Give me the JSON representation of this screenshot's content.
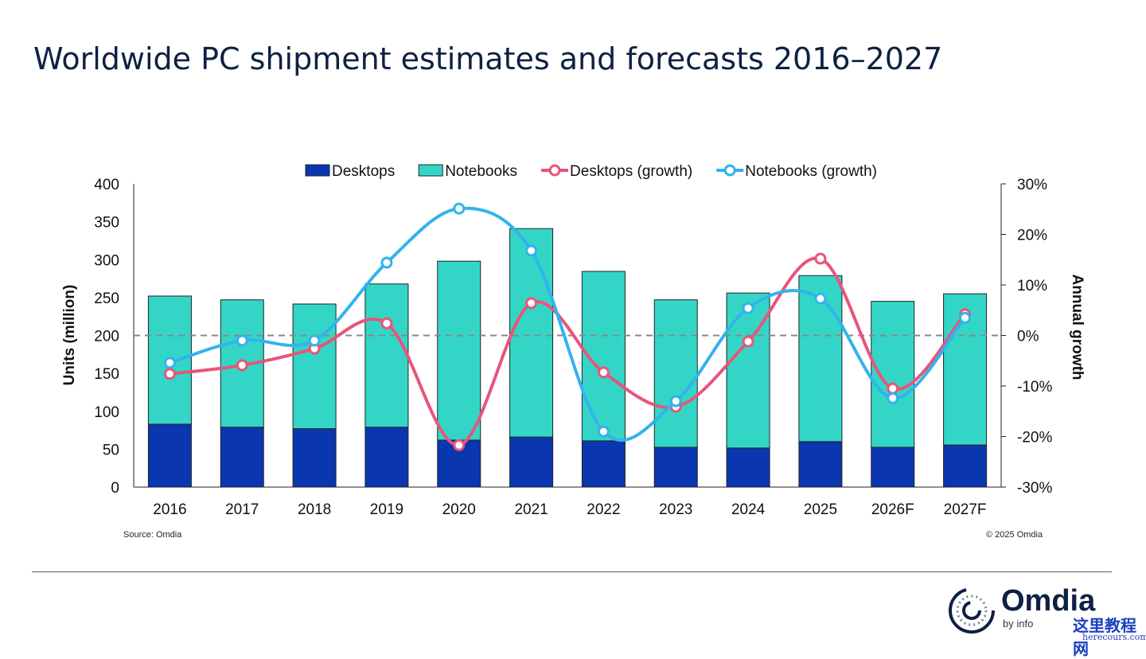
{
  "title": "Worldwide PC shipment estimates and forecasts 2016–2027",
  "footer": {
    "source": "Source: Omdia",
    "copyright": "© 2025 Omdia",
    "logo_text": "Omdia",
    "logo_sub": "by info",
    "watermark": "这里教程网",
    "watermark_url": "herecours.com"
  },
  "chart_data": {
    "type": "bar+line",
    "categories": [
      "2016",
      "2017",
      "2018",
      "2019",
      "2020",
      "2021",
      "2022",
      "2023",
      "2024",
      "2025",
      "2026F",
      "2027F"
    ],
    "series": [
      {
        "name": "Desktops",
        "kind": "stacked-bar",
        "axis": "left",
        "color": "#0a36b0",
        "values": [
          83,
          79,
          77,
          79,
          62,
          66,
          61,
          52.5,
          51.5,
          60,
          52.5,
          55.5
        ]
      },
      {
        "name": "Notebooks",
        "kind": "stacked-bar",
        "axis": "left",
        "color": "#33d6c6",
        "values": [
          169,
          168,
          164.5,
          189,
          236,
          275,
          223.5,
          194.5,
          204.5,
          219,
          192.5,
          199.5
        ]
      },
      {
        "name": "Desktops (growth)",
        "kind": "line",
        "axis": "right",
        "color": "#e8557a",
        "values": [
          -7.6,
          -5.9,
          -2.6,
          2.4,
          -21.7,
          6.4,
          -7.3,
          -14.1,
          -1.2,
          15.2,
          -10.5,
          4.2
        ]
      },
      {
        "name": "Notebooks (growth)",
        "kind": "line",
        "axis": "right",
        "color": "#33b3ec",
        "values": [
          -5.4,
          -1.0,
          -1.0,
          14.4,
          25.1,
          16.8,
          -19.0,
          -13.0,
          5.4,
          7.3,
          -12.4,
          3.5
        ]
      }
    ],
    "ylabel": "Units (million)",
    "ylim": [
      0,
      400
    ],
    "yticks": [
      "0",
      "50",
      "100",
      "150",
      "200",
      "250",
      "300",
      "350",
      "400"
    ],
    "y2label": "Annual growth",
    "y2lim": [
      -30,
      30
    ],
    "y2ticks": [
      "-30%",
      "-20%",
      "-10%",
      "0%",
      "10%",
      "20%",
      "30%"
    ],
    "legend": "top",
    "grid": false,
    "reference_line": "0% growth dashed"
  }
}
